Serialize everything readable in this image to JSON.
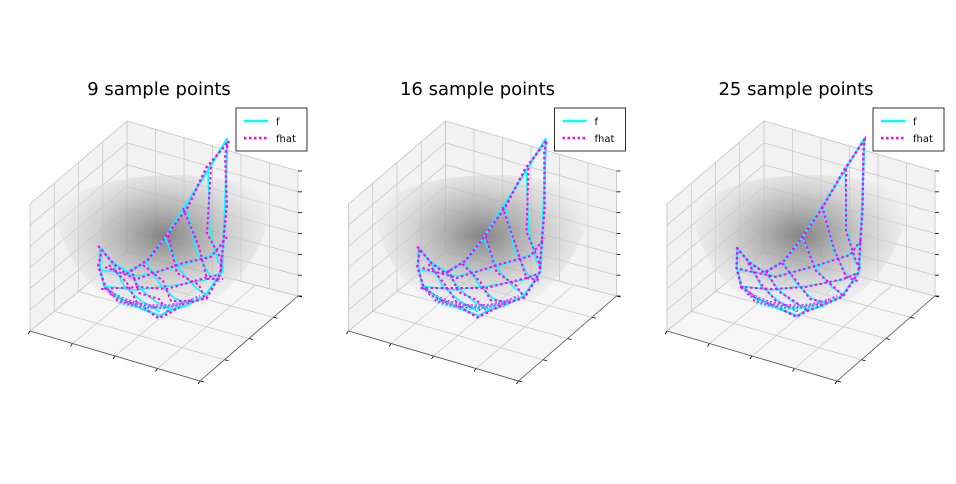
{
  "colors": {
    "f": "#00ffff",
    "fhat": "#ff00ff",
    "surface": "#9a9a9a",
    "pane": "#f2f2f2",
    "grid": "#c8c8c8"
  },
  "chart_data": [
    {
      "type": "surface3d-with-curves",
      "title": "9 sample points",
      "n_samples": 9,
      "legend": [
        {
          "label": "f",
          "style": "solid"
        },
        {
          "label": "fhat",
          "style": "dotted"
        }
      ]
    },
    {
      "type": "surface3d-with-curves",
      "title": "16 sample points",
      "n_samples": 16,
      "legend": [
        {
          "label": "f",
          "style": "solid"
        },
        {
          "label": "fhat",
          "style": "dotted"
        }
      ]
    },
    {
      "type": "surface3d-with-curves",
      "title": "25 sample points",
      "n_samples": 25,
      "legend": [
        {
          "label": "f",
          "style": "solid"
        },
        {
          "label": "fhat",
          "style": "dotted"
        }
      ]
    }
  ]
}
